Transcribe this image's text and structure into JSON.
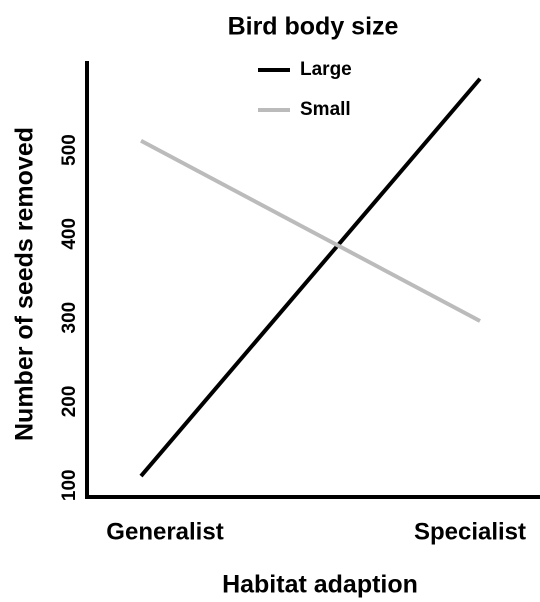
{
  "chart_data": {
    "type": "line",
    "title": "Bird body size",
    "x_label": "Habitat adaption",
    "y_label": "Number of seeds removed",
    "categories": [
      "Generalist",
      "Specialist"
    ],
    "series": [
      {
        "name": "Large",
        "color": "#000000",
        "values": [
          111,
          585
        ]
      },
      {
        "name": "Small",
        "color": "#bbbbbb",
        "values": [
          511,
          296
        ]
      }
    ],
    "ylim": [
      86,
      605
    ],
    "yticks": [
      100,
      200,
      300,
      400,
      500
    ],
    "grid": false,
    "legend": "top"
  }
}
